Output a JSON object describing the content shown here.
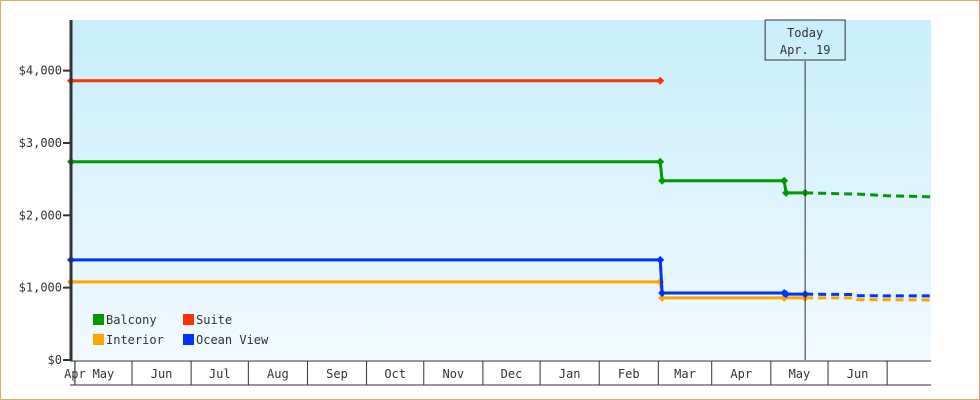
{
  "chart_data": {
    "type": "line",
    "title": "",
    "xlabel": "",
    "ylabel": "",
    "ylim": [
      0,
      4700
    ],
    "y_ticks": [
      "$0",
      "$1,000",
      "$2,000",
      "$3,000",
      "$4,000"
    ],
    "y_tick_values": [
      0,
      1000,
      2000,
      3000,
      4000
    ],
    "x_range": [
      "03-30",
      "06-24"
    ],
    "x_month_labels": [
      "Apr",
      "May",
      "Jun",
      "Jul",
      "Aug",
      "Sep",
      "Oct",
      "Nov",
      "Dec",
      "Jan",
      "Feb",
      "Mar",
      "Apr",
      "May",
      "Jun"
    ],
    "today_marker": {
      "line1": "Today",
      "line2": "Apr. 19",
      "date": "04-19"
    },
    "legend_placement": "bottom-left",
    "grid": false,
    "background": [
      "#c8eefc",
      "#f2faff"
    ],
    "series": [
      {
        "name": "Balcony",
        "color": "#009900",
        "points": [
          [
            "03-30",
            2740
          ],
          [
            "02-02",
            2740
          ],
          [
            "02-03",
            2478
          ],
          [
            "04-08",
            2478
          ],
          [
            "04-09",
            2311
          ],
          [
            "04-19",
            2311
          ]
        ],
        "forecast": [
          [
            "04-19",
            2311
          ],
          [
            "05-20",
            2290
          ],
          [
            "06-01",
            2270
          ],
          [
            "06-24",
            2256
          ]
        ]
      },
      {
        "name": "Suite",
        "color": "#ff3300",
        "points": [
          [
            "03-30",
            3860
          ],
          [
            "02-02",
            3860
          ]
        ],
        "forecast": []
      },
      {
        "name": "Interior",
        "color": "#ffa500",
        "points": [
          [
            "03-30",
            1080
          ],
          [
            "02-02",
            1080
          ],
          [
            "02-03",
            858
          ],
          [
            "04-08",
            858
          ],
          [
            "04-19",
            858
          ]
        ],
        "forecast": [
          [
            "04-19",
            858
          ],
          [
            "05-15",
            858
          ],
          [
            "05-16",
            835
          ],
          [
            "06-24",
            830
          ]
        ]
      },
      {
        "name": "Ocean View",
        "color": "#0033ff",
        "points": [
          [
            "03-30",
            1384
          ],
          [
            "02-02",
            1384
          ],
          [
            "02-03",
            927
          ],
          [
            "04-08",
            927
          ],
          [
            "04-09",
            910
          ],
          [
            "04-19",
            910
          ]
        ],
        "forecast": [
          [
            "04-19",
            910
          ],
          [
            "05-15",
            905
          ],
          [
            "05-16",
            888
          ],
          [
            "06-24",
            886
          ]
        ]
      }
    ]
  }
}
